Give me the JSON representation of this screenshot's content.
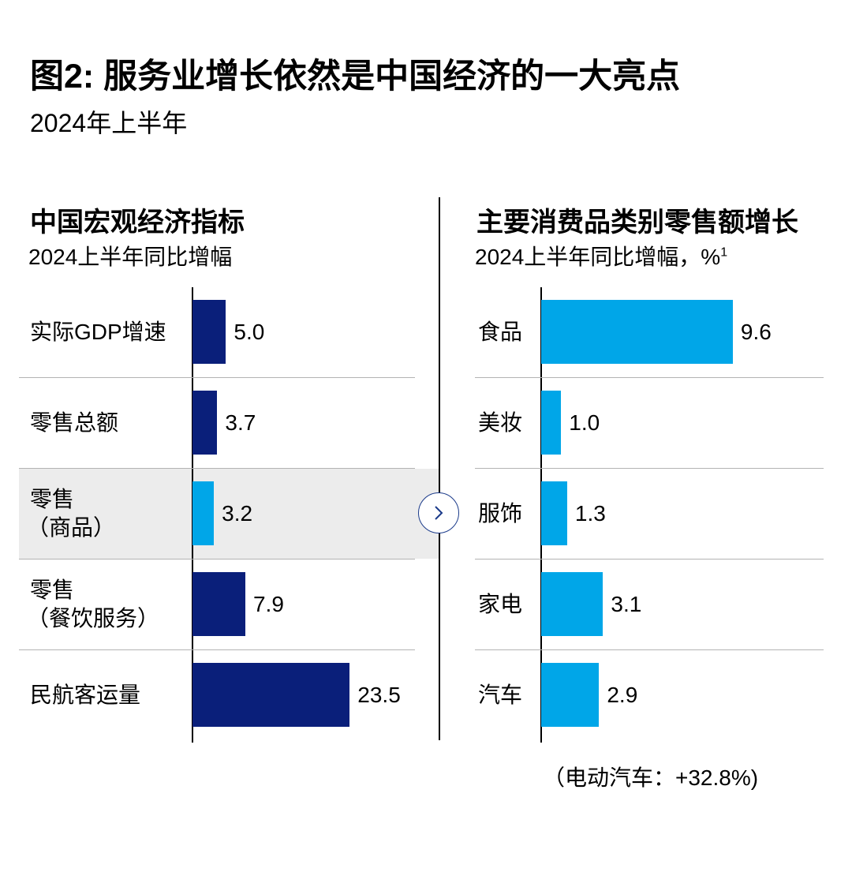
{
  "title": "图2: 服务业增长依然是中国经济的一大亮点",
  "subtitle": "2024年上半年",
  "note": "（电动汽车：+32.8%)",
  "colors": {
    "dark_bar": "#0a1f7a",
    "light_bar": "#00a6e8",
    "highlight": "#ececec"
  },
  "chart_data": [
    {
      "type": "bar",
      "orientation": "horizontal",
      "title": "中国宏观经济指标",
      "subtitle": "2024上半年同比增幅",
      "subtitle_sup": "",
      "categories": [
        [
          "实际GDP增速"
        ],
        [
          "零售总额"
        ],
        [
          "零售",
          "（商品）"
        ],
        [
          "零售",
          "（餐饮服务）"
        ],
        [
          "民航客运量"
        ]
      ],
      "values": [
        5.0,
        3.7,
        3.2,
        7.9,
        23.5
      ],
      "value_labels": [
        "5.0",
        "3.7",
        "3.2",
        "7.9",
        "23.5"
      ],
      "bar_colors": [
        "#0a1f7a",
        "#0a1f7a",
        "#00a6e8",
        "#0a1f7a",
        "#0a1f7a"
      ],
      "highlighted_index": 2
    },
    {
      "type": "bar",
      "orientation": "horizontal",
      "title": "主要消费品类别零售额增长",
      "subtitle": "2024上半年同比增幅，%",
      "subtitle_sup": "1",
      "categories": [
        [
          "食品"
        ],
        [
          "美妆"
        ],
        [
          "服饰"
        ],
        [
          "家电"
        ],
        [
          "汽车"
        ]
      ],
      "values": [
        9.6,
        1.0,
        1.3,
        3.1,
        2.9
      ],
      "value_labels": [
        "9.6",
        "1.0",
        "1.3",
        "3.1",
        "2.9"
      ],
      "bar_colors": [
        "#00a6e8",
        "#00a6e8",
        "#00a6e8",
        "#00a6e8",
        "#00a6e8"
      ],
      "highlighted_index": -1
    }
  ],
  "nav_button": {
    "icon": "chevron-right-icon"
  }
}
